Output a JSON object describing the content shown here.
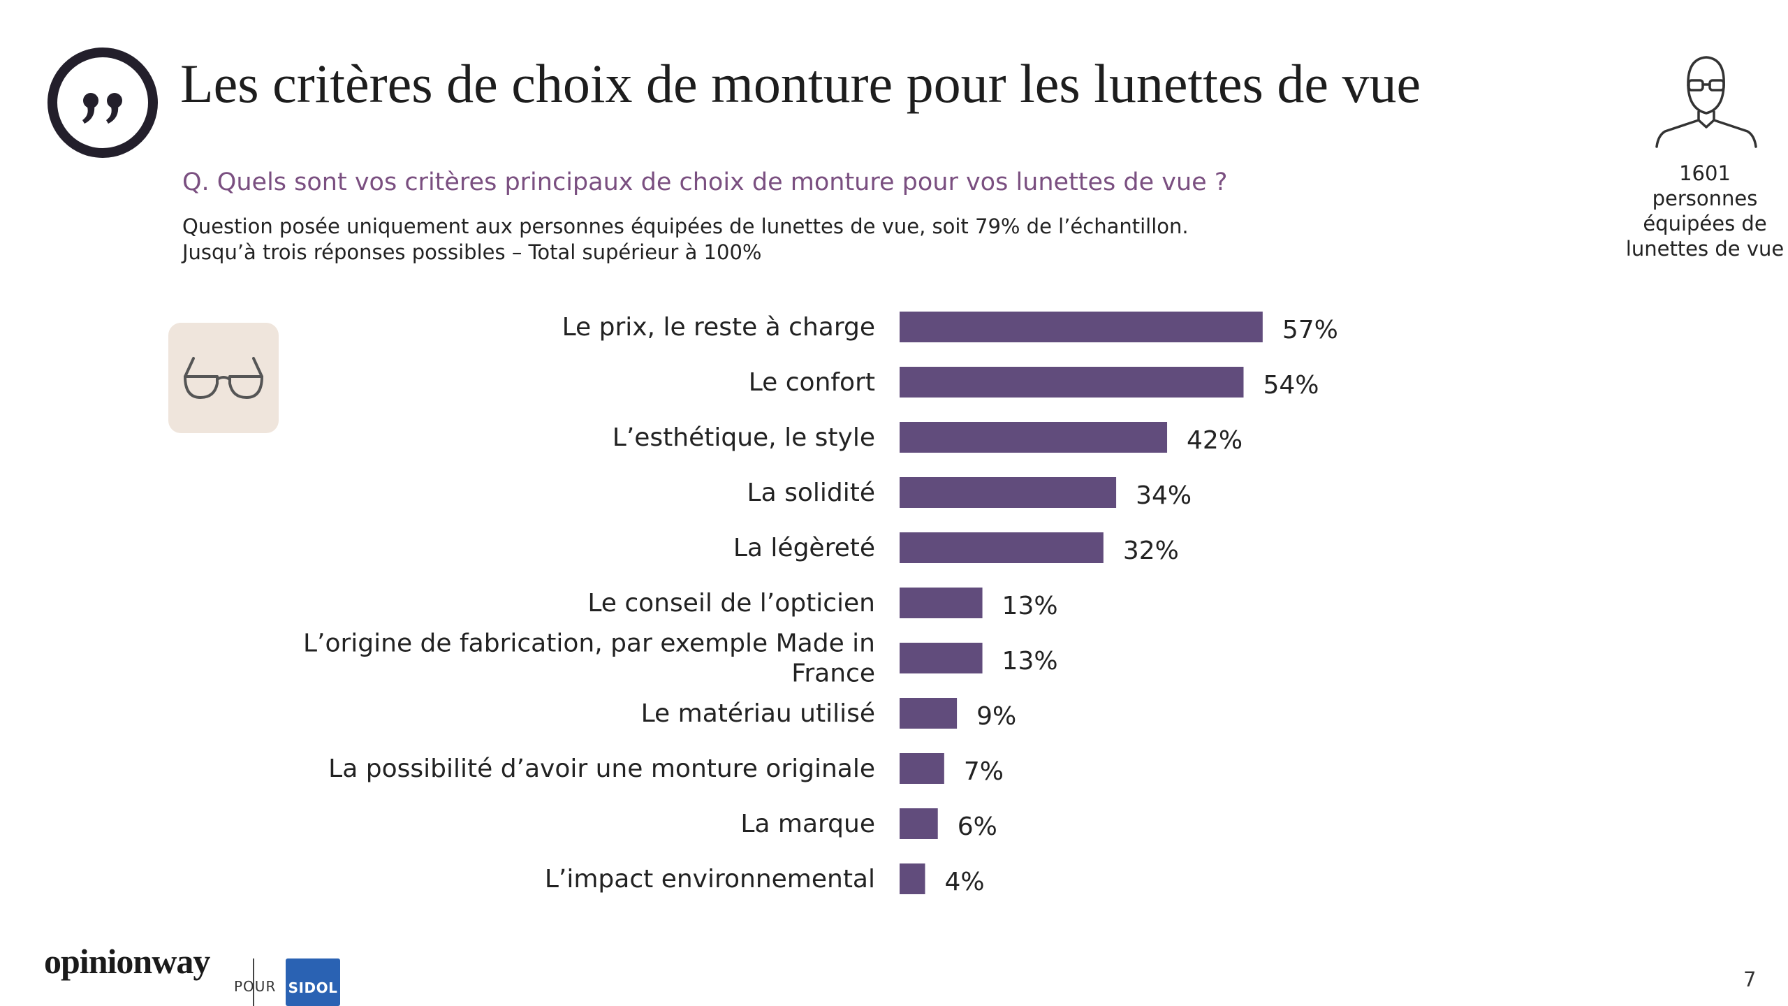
{
  "title": "Les critères de choix de monture pour les lunettes de vue",
  "question": "Q. Quels sont vos critères principaux de choix de monture pour vos lunettes de vue ?",
  "note_line1": "Question posée uniquement aux personnes équipées de lunettes de vue, soit 79% de l’échantillon.",
  "note_line2": "Jusqu’à trois réponses possibles – Total supérieur à 100%",
  "sample": {
    "count": "1601",
    "line1": "personnes",
    "line2": "équipées de",
    "line3": "lunettes de vue"
  },
  "icons": {
    "quote": "quote-icon",
    "person": "person-with-glasses-icon",
    "glasses": "glasses-icon"
  },
  "footer": {
    "brand": "opinionway",
    "pour": "POUR",
    "client_logo": "SIDOL",
    "page_number": "7"
  },
  "colors": {
    "bar": "#614c7c",
    "question": "#7a4f80",
    "card_bg": "#efe5dc",
    "quote_ring": "#231f2b",
    "client_logo_bg": "#2a62b3"
  },
  "chart_data": {
    "type": "bar",
    "orientation": "horizontal",
    "categories": [
      [
        "Le prix, le reste à charge"
      ],
      [
        "Le confort"
      ],
      [
        "L’esthétique, le style"
      ],
      [
        "La solidité"
      ],
      [
        "La légèreté"
      ],
      [
        "Le conseil de l’opticien"
      ],
      [
        "L’origine de fabrication, par exemple Made in",
        "France"
      ],
      [
        "Le matériau utilisé"
      ],
      [
        "La possibilité d’avoir une monture originale"
      ],
      [
        "La marque"
      ],
      [
        "L’impact environnemental"
      ]
    ],
    "values": [
      57,
      54,
      42,
      34,
      32,
      13,
      13,
      9,
      7,
      6,
      4
    ],
    "value_labels": [
      "57%",
      "54%",
      "42%",
      "34%",
      "32%",
      "13%",
      "13%",
      "9%",
      "7%",
      "6%",
      "4%"
    ],
    "unit": "%",
    "xlim": [
      0,
      100
    ],
    "grid": false,
    "legend": "none"
  }
}
